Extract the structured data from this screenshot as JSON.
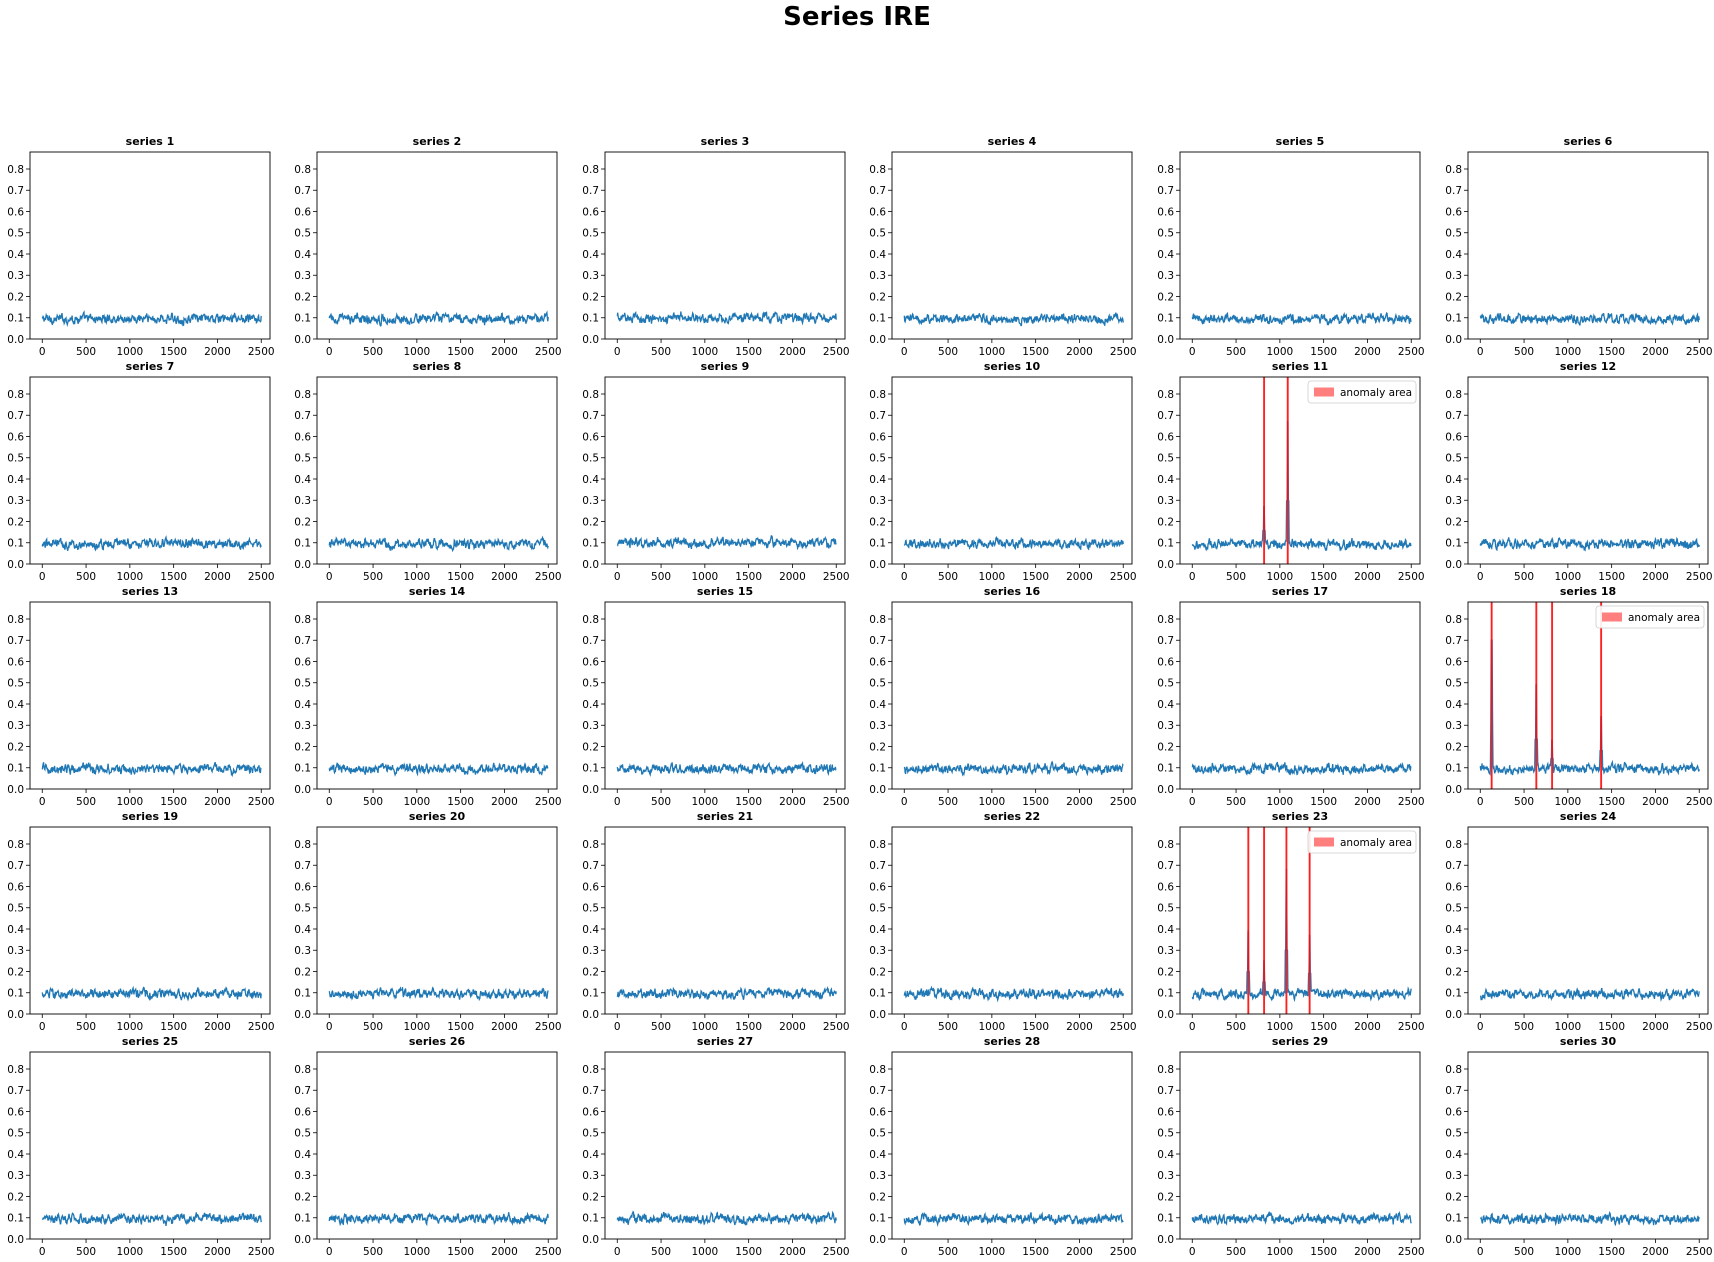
{
  "figure": {
    "title": "Series IRE"
  },
  "style": {
    "line_color": "#1f77b4",
    "anomaly_color": "#ff0000",
    "anomaly_fill": "#ff7b7b"
  },
  "chart_data": {
    "type": "line",
    "grid": false,
    "layout": "5 rows x 6 columns of small multiples",
    "shared_axes": {
      "x_ticks": [
        0,
        500,
        1000,
        1500,
        2000,
        2500
      ],
      "y_ticks": [
        0.0,
        0.1,
        0.2,
        0.3,
        0.4,
        0.5,
        0.6,
        0.7,
        0.8
      ],
      "ylim": [
        0,
        0.88
      ],
      "xlim": [
        -140,
        2600
      ],
      "n_points": 2500
    },
    "legend_label": "anomaly area",
    "legend_placement": "upper right (only on panels with anomalies)",
    "panels": [
      {
        "title": "series 1",
        "baseline": 0.095
      },
      {
        "title": "series 2",
        "baseline": 0.095
      },
      {
        "title": "series 3",
        "baseline": 0.1
      },
      {
        "title": "series 4",
        "baseline": 0.095
      },
      {
        "title": "series 5",
        "baseline": 0.095
      },
      {
        "title": "series 6",
        "baseline": 0.095
      },
      {
        "title": "series 7",
        "baseline": 0.095
      },
      {
        "title": "series 8",
        "baseline": 0.095
      },
      {
        "title": "series 9",
        "baseline": 0.1
      },
      {
        "title": "series 10",
        "baseline": 0.095
      },
      {
        "title": "series 11",
        "baseline": 0.095,
        "anomalies": [
          {
            "x": 820,
            "peak": 0.27
          },
          {
            "x": 1090,
            "peak": 0.67
          }
        ]
      },
      {
        "title": "series 12",
        "baseline": 0.095
      },
      {
        "title": "series 13",
        "baseline": 0.095
      },
      {
        "title": "series 14",
        "baseline": 0.095
      },
      {
        "title": "series 15",
        "baseline": 0.095
      },
      {
        "title": "series 16",
        "baseline": 0.095
      },
      {
        "title": "series 17",
        "baseline": 0.095
      },
      {
        "title": "series 18",
        "baseline": 0.095,
        "anomalies": [
          {
            "x": 130,
            "peak": 0.7
          },
          {
            "x": 640,
            "peak": 0.49
          },
          {
            "x": 820,
            "peak": 0.23
          },
          {
            "x": 1380,
            "peak": 0.34
          }
        ]
      },
      {
        "title": "series 19",
        "baseline": 0.095
      },
      {
        "title": "series 20",
        "baseline": 0.095
      },
      {
        "title": "series 21",
        "baseline": 0.095
      },
      {
        "title": "series 22",
        "baseline": 0.095
      },
      {
        "title": "series 23",
        "baseline": 0.095,
        "anomalies": [
          {
            "x": 640,
            "peak": 0.39
          },
          {
            "x": 820,
            "peak": 0.25
          },
          {
            "x": 1075,
            "peak": 0.68
          },
          {
            "x": 1340,
            "peak": 0.37
          }
        ]
      },
      {
        "title": "series 24",
        "baseline": 0.095
      },
      {
        "title": "series 25",
        "baseline": 0.095
      },
      {
        "title": "series 26",
        "baseline": 0.095
      },
      {
        "title": "series 27",
        "baseline": 0.095
      },
      {
        "title": "series 28",
        "baseline": 0.095
      },
      {
        "title": "series 29",
        "baseline": 0.095
      },
      {
        "title": "series 30",
        "baseline": 0.095
      }
    ]
  }
}
